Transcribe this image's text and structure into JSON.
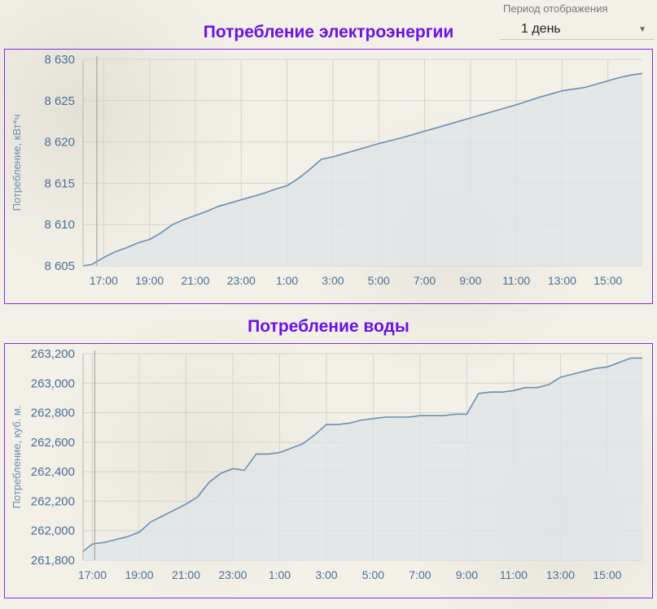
{
  "period": {
    "label": "Период отображения",
    "value": "1 день"
  },
  "charts": [
    {
      "title": "Потребление электроэнергии"
    },
    {
      "title": "Потребление воды"
    }
  ],
  "colors": {
    "title": "#6a12e8",
    "border": "#8a2be2",
    "line": "#6a8fb3",
    "fill": "#dde4e8",
    "tick": "#4a6f98"
  },
  "chart_data": [
    {
      "type": "area",
      "title": "Потребление электроэнергии",
      "ylabel": "Потребление, кВт*ч",
      "ylim": [
        8605,
        8630
      ],
      "yticks": [
        8605,
        8610,
        8615,
        8620,
        8625,
        8630
      ],
      "ytick_labels": [
        "8 605",
        "8 610",
        "8 615",
        "8 620",
        "8 625",
        "8 630"
      ],
      "xlim": [
        16.1,
        40.5
      ],
      "xticks": [
        17,
        19,
        21,
        23,
        25,
        27,
        29,
        31,
        33,
        35,
        37,
        39
      ],
      "xtick_labels": [
        "17:00",
        "19:00",
        "21:00",
        "23:00",
        "1:00",
        "3:00",
        "5:00",
        "7:00",
        "9:00",
        "11:00",
        "13:00",
        "15:00"
      ],
      "grid": true,
      "x": [
        16.1,
        16.5,
        17.0,
        17.5,
        18.0,
        18.5,
        19.0,
        19.5,
        20.0,
        20.5,
        21.0,
        21.5,
        22.0,
        22.5,
        23.0,
        23.5,
        24.0,
        24.5,
        25.0,
        25.5,
        26.0,
        26.5,
        27.0,
        27.5,
        28.0,
        29.0,
        30.0,
        31.0,
        32.0,
        33.0,
        34.0,
        35.0,
        36.0,
        36.5,
        37.0,
        37.5,
        38.0,
        38.5,
        39.0,
        39.5,
        40.0,
        40.5
      ],
      "y": [
        8605.0,
        8605.2,
        8606.0,
        8606.7,
        8607.2,
        8607.8,
        8608.2,
        8609.0,
        8610.0,
        8610.6,
        8611.1,
        8611.6,
        8612.2,
        8612.6,
        8613.0,
        8613.4,
        8613.8,
        8614.3,
        8614.7,
        8615.6,
        8616.7,
        8617.9,
        8618.2,
        8618.6,
        8619.0,
        8619.8,
        8620.5,
        8621.3,
        8622.1,
        8622.9,
        8623.7,
        8624.5,
        8625.4,
        8625.8,
        8626.2,
        8626.4,
        8626.6,
        8627.0,
        8627.4,
        8627.8,
        8628.1,
        8628.3
      ]
    },
    {
      "type": "area",
      "title": "Потребление воды",
      "ylabel": "Потребление, куб. м.",
      "ylim": [
        261800,
        263200
      ],
      "yticks": [
        261800,
        262000,
        262200,
        262400,
        262600,
        262800,
        263000,
        263200
      ],
      "ytick_labels": [
        "261,800",
        "262,000",
        "262,200",
        "262,400",
        "262,600",
        "262,800",
        "263,000",
        "263,200"
      ],
      "xlim": [
        16.6,
        40.5
      ],
      "xticks": [
        17,
        19,
        21,
        23,
        25,
        27,
        29,
        31,
        33,
        35,
        37,
        39
      ],
      "xtick_labels": [
        "17:00",
        "19:00",
        "21:00",
        "23:00",
        "1:00",
        "3:00",
        "5:00",
        "7:00",
        "9:00",
        "11:00",
        "13:00",
        "15:00"
      ],
      "grid": true,
      "x": [
        16.6,
        17.0,
        17.5,
        18.0,
        18.5,
        19.0,
        19.5,
        20.0,
        20.5,
        21.0,
        21.5,
        22.0,
        22.5,
        23.0,
        23.5,
        24.0,
        24.5,
        25.0,
        25.5,
        26.0,
        26.5,
        27.0,
        27.5,
        28.0,
        28.5,
        29.0,
        29.5,
        30.0,
        30.5,
        31.0,
        31.5,
        32.0,
        32.5,
        33.0,
        33.5,
        34.0,
        34.5,
        35.0,
        35.5,
        36.0,
        36.5,
        37.0,
        37.5,
        38.0,
        38.5,
        39.0,
        39.5,
        40.0,
        40.5
      ],
      "y": [
        261860,
        261910,
        261920,
        261940,
        261960,
        261990,
        262060,
        262100,
        262140,
        262180,
        262230,
        262330,
        262390,
        262420,
        262410,
        262520,
        262520,
        262530,
        262560,
        262590,
        262650,
        262720,
        262720,
        262730,
        262750,
        262760,
        262770,
        262770,
        262770,
        262780,
        262780,
        262780,
        262790,
        262790,
        262930,
        262940,
        262940,
        262950,
        262970,
        262970,
        262990,
        263040,
        263060,
        263080,
        263100,
        263110,
        263140,
        263170,
        263170
      ]
    }
  ]
}
